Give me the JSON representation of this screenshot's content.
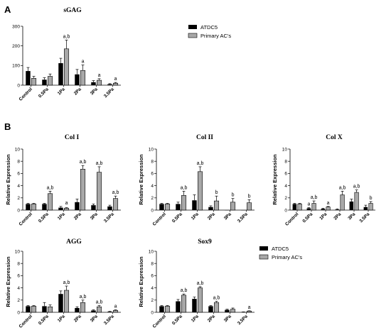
{
  "panel_labels": [
    "A",
    "B"
  ],
  "chart_data": [
    {
      "type": "bar",
      "title": "sGAG",
      "ylabel": "",
      "ylim": [
        0,
        300
      ],
      "yticks": [
        0,
        100,
        200,
        300
      ],
      "categories": [
        "Control",
        "0.5Pa",
        "1Pa",
        "2Pa",
        "3Pa",
        "3.5Pa"
      ],
      "series": [
        {
          "name": "ATDC5",
          "values": [
            72,
            28,
            112,
            55,
            15,
            5
          ],
          "errors": [
            18,
            10,
            25,
            25,
            8,
            3
          ]
        },
        {
          "name": "Primary AC's",
          "values": [
            35,
            45,
            185,
            75,
            25,
            10
          ],
          "errors": [
            10,
            12,
            45,
            28,
            8,
            4
          ]
        }
      ],
      "annotations": [
        {
          "category": "1Pa",
          "text": "a,b"
        },
        {
          "category": "2Pa",
          "text": "a"
        },
        {
          "category": "3Pa",
          "text": "a"
        },
        {
          "category": "3.5Pa",
          "text": "a"
        }
      ],
      "legend": "right"
    },
    {
      "type": "bar",
      "title": "Col I",
      "ylabel": "Relative Expression",
      "ylim": [
        0,
        10
      ],
      "yticks": [
        0,
        2,
        4,
        6,
        8,
        10
      ],
      "categories": [
        "Control",
        "0.5Pa",
        "1Pa",
        "2Pa",
        "3Pa",
        "3.5Pa"
      ],
      "series": [
        {
          "name": "ATDC5",
          "values": [
            1,
            1,
            0.4,
            1.3,
            0.8,
            0.6
          ],
          "errors": [
            0.1,
            0.1,
            0.2,
            0.5,
            0.2,
            0.2
          ]
        },
        {
          "name": "Primary AC's",
          "values": [
            1,
            2.7,
            0.3,
            6.7,
            6.2,
            1.9
          ],
          "errors": [
            0.1,
            0.4,
            0.1,
            0.6,
            0.9,
            0.4
          ]
        }
      ],
      "annotations": [
        {
          "category": "0.5Pa",
          "text": "a,b"
        },
        {
          "category": "1Pa",
          "text": "a"
        },
        {
          "category": "2Pa",
          "text": "a,b"
        },
        {
          "category": "3Pa",
          "text": "a,b"
        },
        {
          "category": "3.5Pa",
          "text": "a,b"
        }
      ]
    },
    {
      "type": "bar",
      "title": "Col II",
      "ylabel": "Relative Expression",
      "ylim": [
        0,
        10
      ],
      "yticks": [
        0,
        2,
        4,
        6,
        8,
        10
      ],
      "categories": [
        "Control",
        "0.5Pa",
        "1Pa",
        "2Pa",
        "3Pa",
        "3.5Pa"
      ],
      "series": [
        {
          "name": "ATDC5",
          "values": [
            1,
            1,
            1.6,
            0.5,
            0,
            0
          ],
          "errors": [
            0.1,
            0.3,
            0.9,
            0.2,
            0,
            0
          ]
        },
        {
          "name": "Primary AC's",
          "values": [
            1,
            2.4,
            6.3,
            1.5,
            1.3,
            1.2
          ],
          "errors": [
            0.1,
            0.7,
            0.8,
            0.8,
            0.6,
            0.5
          ]
        }
      ],
      "annotations": [
        {
          "category": "0.5Pa",
          "text": "a,b"
        },
        {
          "category": "1Pa",
          "text": "a,b"
        },
        {
          "category": "2Pa",
          "text": "b"
        },
        {
          "category": "3Pa",
          "text": "b"
        },
        {
          "category": "3.5Pa",
          "text": "b"
        }
      ]
    },
    {
      "type": "bar",
      "title": "Col X",
      "ylabel": "Relative Expression",
      "ylim": [
        0,
        10
      ],
      "yticks": [
        0,
        2,
        4,
        6,
        8,
        10
      ],
      "categories": [
        "Control",
        "0.5Pa",
        "1Pa",
        "2Pa",
        "3Pa",
        "3.5Pa"
      ],
      "series": [
        {
          "name": "ATDC5",
          "values": [
            1,
            0.3,
            0.2,
            0.1,
            1.4,
            0.5
          ],
          "errors": [
            0.1,
            0.1,
            0.1,
            0.1,
            0.4,
            0.3
          ]
        },
        {
          "name": "Primary AC's",
          "values": [
            1,
            1.1,
            0.5,
            2.5,
            2.9,
            1.1
          ],
          "errors": [
            0.1,
            0.4,
            0.1,
            0.6,
            0.4,
            0.3
          ]
        }
      ],
      "annotations": [
        {
          "category": "0.5Pa",
          "text": "a"
        },
        {
          "category": "0.5Pa",
          "text": "a,b"
        },
        {
          "category": "1Pa",
          "text": "a"
        },
        {
          "category": "2Pa",
          "text": "a,b"
        },
        {
          "category": "3Pa",
          "text": "a,b"
        },
        {
          "category": "3.5Pa",
          "text": "b"
        }
      ]
    },
    {
      "type": "bar",
      "title": "AGG",
      "ylabel": "Relative Expression",
      "ylim": [
        0,
        10
      ],
      "yticks": [
        0,
        2,
        4,
        6,
        8,
        10
      ],
      "categories": [
        "Control",
        "0.5Pa",
        "1Pa",
        "2Pa",
        "3Pa",
        "3.5Pa"
      ],
      "series": [
        {
          "name": "ATDC5",
          "values": [
            1,
            1,
            3,
            0.7,
            0.3,
            0.1
          ],
          "errors": [
            0.1,
            0.6,
            0.5,
            0.2,
            0.1,
            0.05
          ]
        },
        {
          "name": "Primary AC's",
          "values": [
            1,
            0.9,
            3.6,
            1.6,
            0.9,
            0.3
          ],
          "errors": [
            0.1,
            0.3,
            0.7,
            0.4,
            0.2,
            0.1
          ]
        }
      ],
      "annotations": [
        {
          "category": "1Pa",
          "text": "a,b"
        },
        {
          "category": "2Pa",
          "text": "a,b"
        },
        {
          "category": "3Pa",
          "text": "a,b"
        },
        {
          "category": "3.5Pa",
          "text": "a"
        }
      ]
    },
    {
      "type": "bar",
      "title": "Sox9",
      "ylabel": "Relative Expression",
      "ylim": [
        0,
        10
      ],
      "yticks": [
        0,
        2,
        4,
        6,
        8,
        10
      ],
      "categories": [
        "Control",
        "0.5Pa",
        "1Pa",
        "2Pa",
        "3Pa",
        "3.5Pa"
      ],
      "series": [
        {
          "name": "ATDC5",
          "values": [
            1,
            1.8,
            2.2,
            1,
            0.4,
            0.05
          ],
          "errors": [
            0.1,
            0.3,
            0.3,
            0.1,
            0.1,
            0.02
          ]
        },
        {
          "name": "Primary AC's",
          "values": [
            1,
            2.8,
            4,
            1.6,
            0.5,
            0.2
          ],
          "errors": [
            0.1,
            0.2,
            0.2,
            0.2,
            0.2,
            0.05
          ]
        }
      ],
      "annotations": [
        {
          "category": "0.5Pa",
          "text": "a,b"
        },
        {
          "category": "1Pa",
          "text": "a,b"
        },
        {
          "category": "2Pa",
          "text": "a,b"
        },
        {
          "category": "3.5Pa",
          "text": "a"
        }
      ],
      "legend": "right"
    }
  ],
  "colors": {
    "ATDC5": "#000000",
    "Primary AC's": "#a8a8a8"
  }
}
